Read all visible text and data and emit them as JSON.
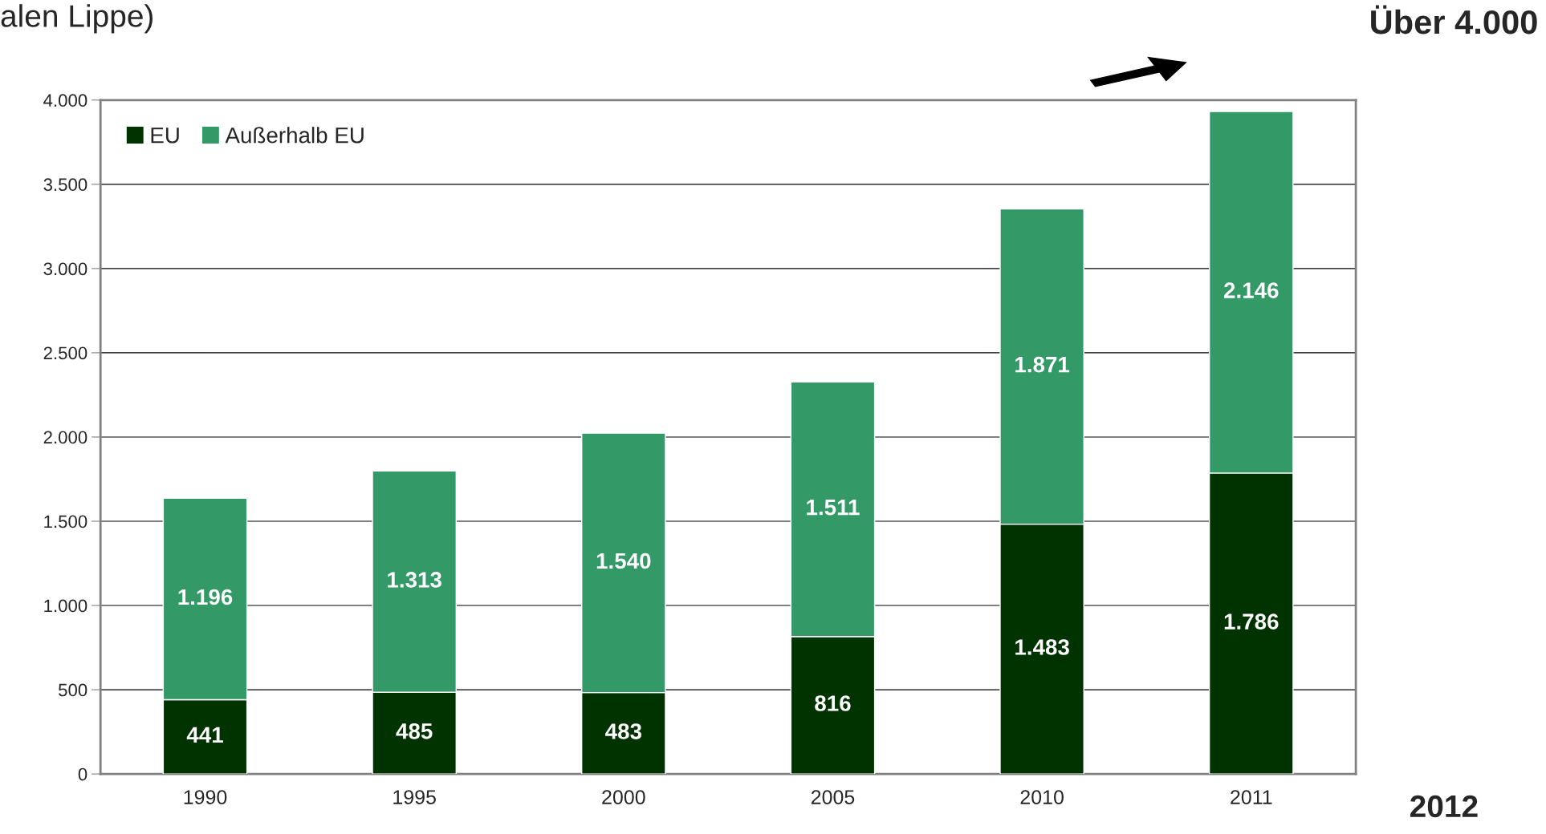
{
  "chart_data": {
    "type": "bar",
    "stacked": true,
    "categories": [
      "1990",
      "1995",
      "2000",
      "2005",
      "2010",
      "2011"
    ],
    "series": [
      {
        "name": "EU",
        "color": "#003300",
        "values": [
          441,
          485,
          483,
          816,
          1483,
          1786
        ],
        "value_labels": [
          "441",
          "485",
          "483",
          "816",
          "1.483",
          "1.786"
        ]
      },
      {
        "name": "Außerhalb EU",
        "color": "#339966",
        "values": [
          1196,
          1313,
          1540,
          1511,
          1871,
          2146
        ],
        "value_labels": [
          "1.196",
          "1.313",
          "1.540",
          "1.511",
          "1.871",
          "2.146"
        ]
      }
    ],
    "ylim": [
      0,
      4000
    ],
    "yticks": [
      0,
      500,
      {
        "value": 1000,
        "label": "1.000"
      },
      {
        "value": 1500,
        "label": "1.500"
      },
      {
        "value": 2000,
        "label": "2.000"
      },
      {
        "value": 2500,
        "label": "2.500"
      },
      {
        "value": 3000,
        "label": "3.000"
      },
      {
        "value": 3500,
        "label": "3.500"
      },
      {
        "value": 4000,
        "label": "4.000"
      }
    ],
    "grid": "y",
    "legend": "top left",
    "annotations": [
      "alen Lippe)",
      "Über 4.000",
      "2012"
    ]
  }
}
